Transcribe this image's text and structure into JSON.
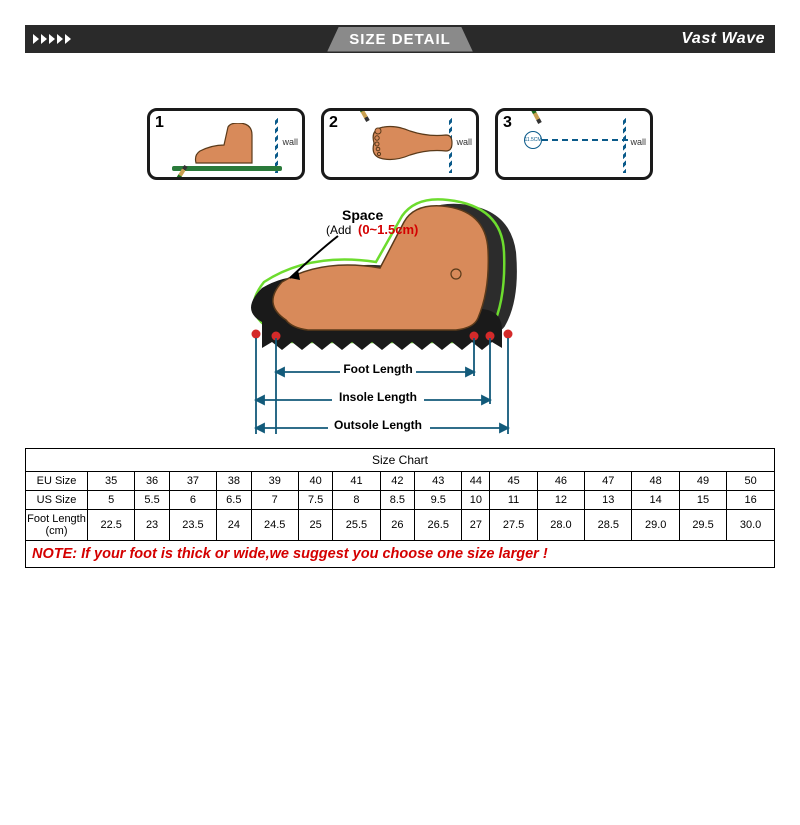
{
  "header": {
    "title": "SIZE DETAIL",
    "brand": "Vast Wave"
  },
  "steps": {
    "wall_label": "wall",
    "items": [
      {
        "num": "1"
      },
      {
        "num": "2"
      },
      {
        "num": "3",
        "measurement": "11.5CM"
      }
    ]
  },
  "diagram": {
    "space_label": "Space",
    "space_add_prefix": "(Add",
    "space_add_value": "(0~1.5cm)",
    "foot_length": "Foot Length",
    "insole_length": "Insole Length",
    "outsole_length": "Outsole Length",
    "colors": {
      "foot": "#d88a5a",
      "foot_stroke": "#5a3a1a",
      "sole": "#1a1a1a",
      "outline_green": "#6ddc2e",
      "dot_red": "#d42a2a",
      "measure": "#125a7a"
    }
  },
  "table": {
    "title": "Size Chart",
    "rows": [
      {
        "label": "EU Size",
        "values": [
          "35",
          "36",
          "37",
          "38",
          "39",
          "40",
          "41",
          "42",
          "43",
          "44",
          "45",
          "46",
          "47",
          "48",
          "49",
          "50"
        ]
      },
      {
        "label": "US Size",
        "values": [
          "5",
          "5.5",
          "6",
          "6.5",
          "7",
          "7.5",
          "8",
          "8.5",
          "9.5",
          "10",
          "11",
          "12",
          "13",
          "14",
          "15",
          "16"
        ]
      },
      {
        "label": "Foot Length (cm)",
        "values": [
          "22.5",
          "23",
          "23.5",
          "24",
          "24.5",
          "25",
          "25.5",
          "26",
          "26.5",
          "27",
          "27.5",
          "28.0",
          "28.5",
          "29.0",
          "29.5",
          "30.0"
        ],
        "small": true
      }
    ],
    "note": "NOTE: If your foot is thick or wide,we suggest you choose one size larger !",
    "col_count": 16
  }
}
